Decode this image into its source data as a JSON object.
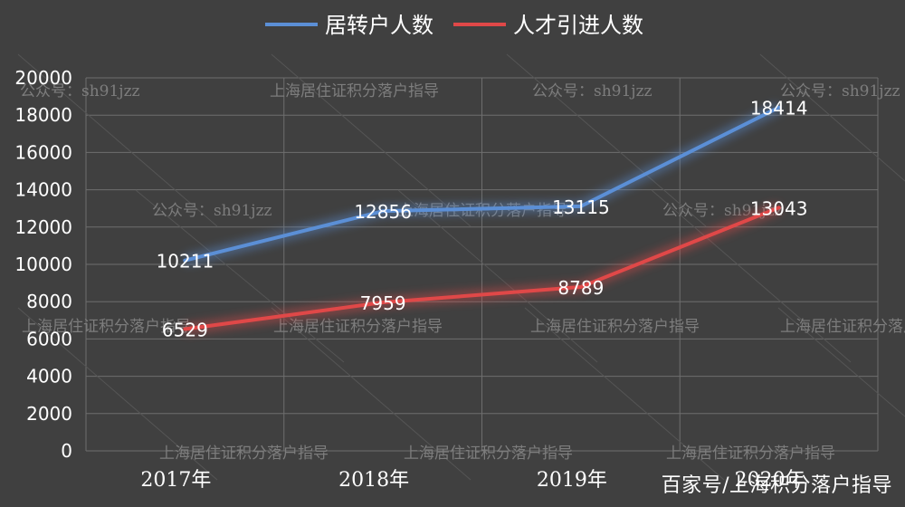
{
  "chart_data": {
    "type": "line",
    "categories": [
      "2017年",
      "2018年",
      "2019年",
      "2020年"
    ],
    "series": [
      {
        "name": "居转户人数",
        "values": [
          10211,
          12856,
          13115,
          18414
        ],
        "color": "#5b8fd6"
      },
      {
        "name": "人才引进人数",
        "values": [
          6529,
          7959,
          8789,
          13043
        ],
        "color": "#e04848"
      }
    ],
    "ylim": [
      0,
      20000
    ],
    "yticks": [
      0,
      2000,
      4000,
      6000,
      8000,
      10000,
      12000,
      14000,
      16000,
      18000,
      20000
    ],
    "grid": true,
    "legend": "top-center"
  },
  "watermarks": [
    "公众号：sh91jzz",
    "上海居住证积分落户指导"
  ],
  "credit": "百家号/上海积分落户指导",
  "colors": {
    "background": "#404040",
    "grid": "#6e6e6e",
    "text": "#ffffff"
  }
}
